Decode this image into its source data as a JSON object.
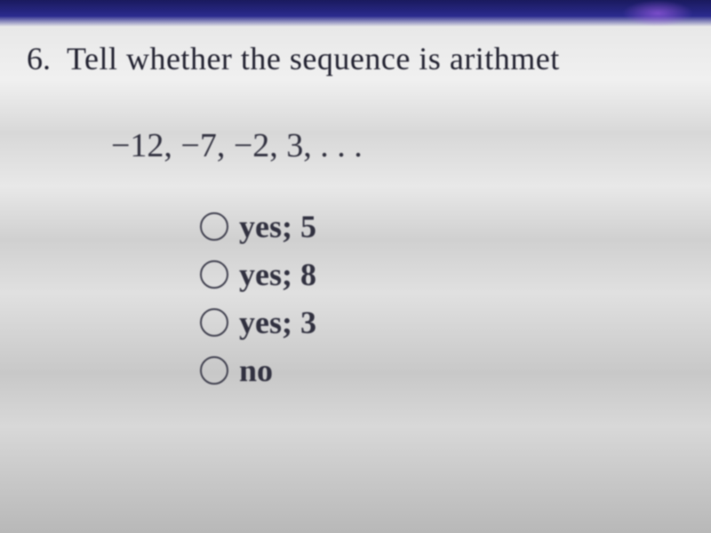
{
  "question": {
    "number": "6.",
    "text": "Tell whether the sequence is arithmet",
    "sequence": "−12, −7, −2, 3, . . ."
  },
  "options": [
    {
      "label": "yes; 5"
    },
    {
      "label": "yes; 8"
    },
    {
      "label": "yes; 3"
    },
    {
      "label": "no"
    }
  ],
  "styling": {
    "font_family": "Times New Roman",
    "question_fontsize": 36,
    "sequence_fontsize": 38,
    "option_fontsize": 36,
    "text_color": "#2a2a3a",
    "circle_border_color": "#3a3a4a",
    "circle_size": 32,
    "background_gradient_top": "#1a1a5e",
    "background_gradient_main": "#e0e0e0"
  }
}
